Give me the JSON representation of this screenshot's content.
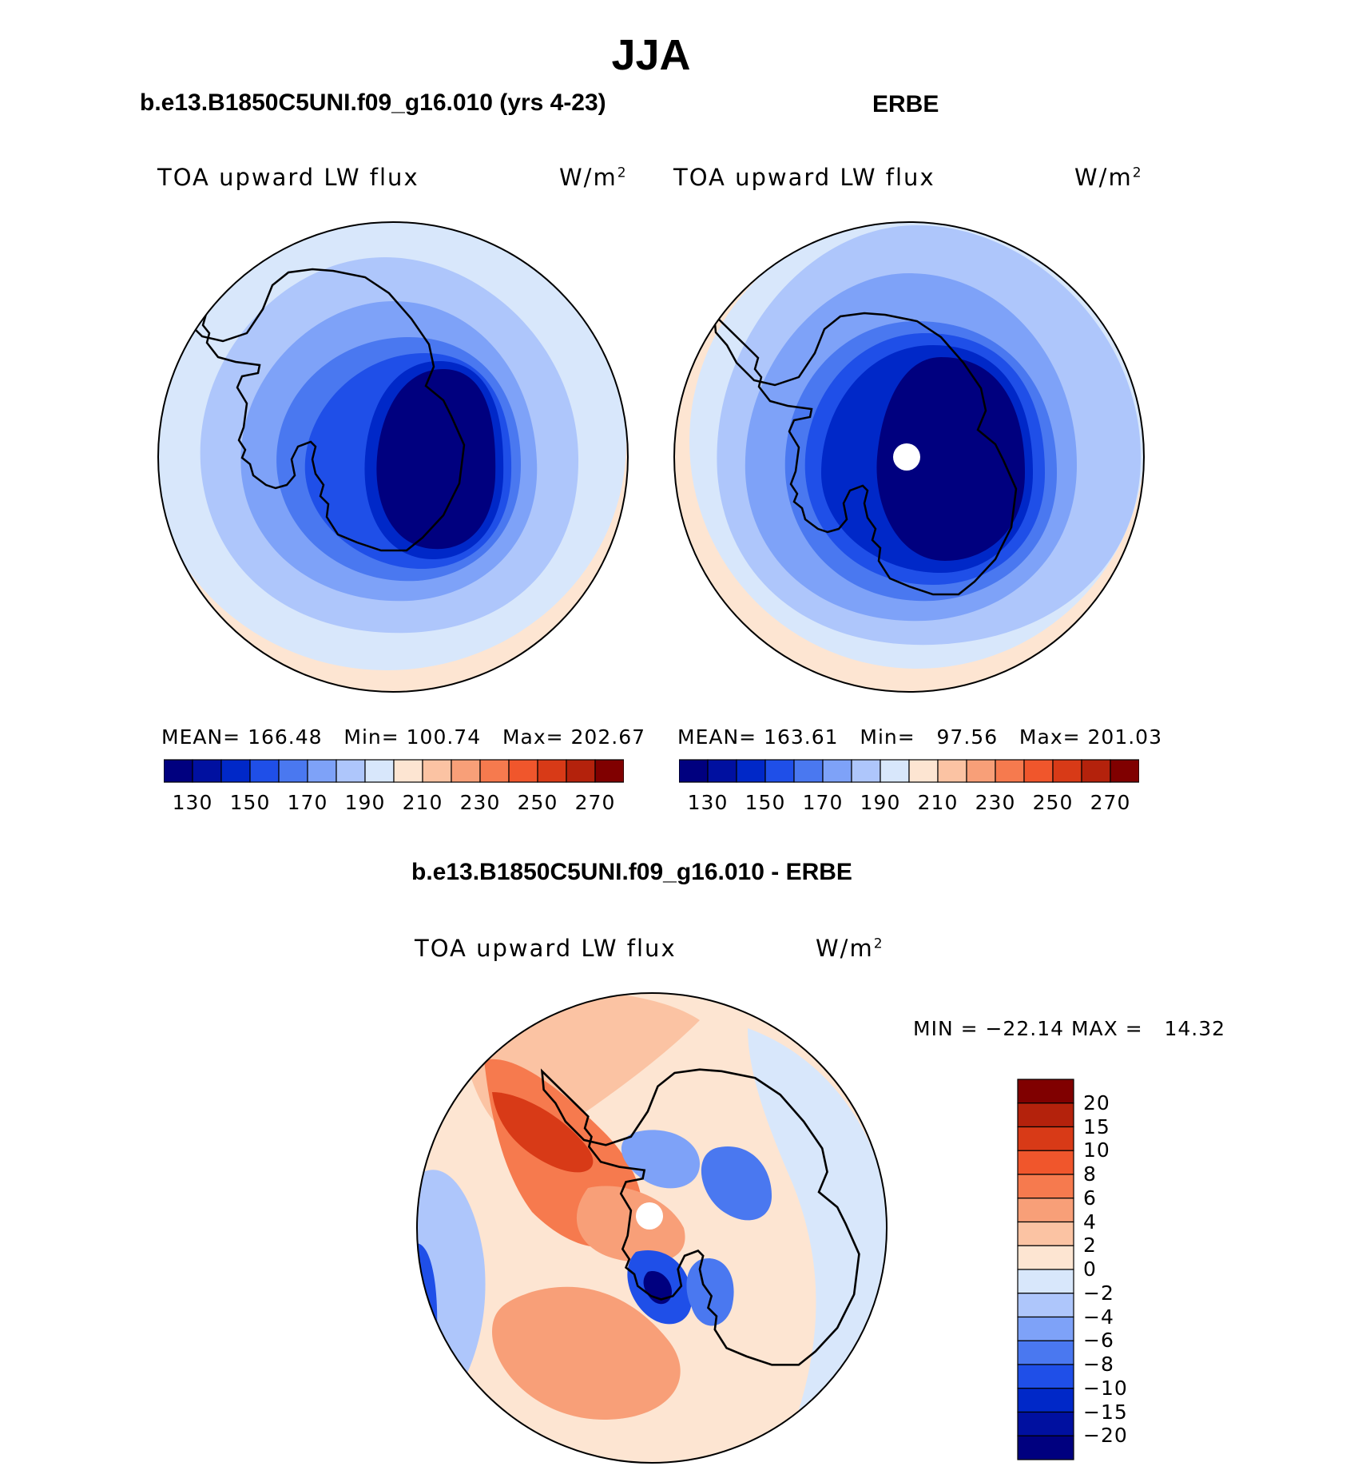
{
  "title": "JJA",
  "panel_left": {
    "case": "b.e13.B1850C5UNI.f09_g16.010 (yrs 4-23)",
    "variable": "TOA upward LW flux",
    "units": "W/m",
    "units_sup": "2",
    "stats": "MEAN= 166.48   Min= 100.74   Max= 202.67",
    "mean": 166.48,
    "min": 100.74,
    "max": 202.67
  },
  "panel_right": {
    "case": "ERBE",
    "variable": "TOA upward LW flux",
    "units": "W/m",
    "units_sup": "2",
    "stats": "MEAN= 163.61   Min=   97.56   Max= 201.03",
    "mean": 163.61,
    "min": 97.56,
    "max": 201.03
  },
  "panel_diff": {
    "case": "b.e13.B1850C5UNI.f09_g16.010 - ERBE",
    "variable": "TOA upward LW flux",
    "units": "W/m",
    "units_sup": "2",
    "stats": "MIN = −22.14 MAX =   14.32",
    "min": -22.14,
    "max": 14.32
  },
  "colorbar_abs": {
    "tick_labels": [
      "130",
      "150",
      "170",
      "190",
      "210",
      "230",
      "250",
      "270"
    ],
    "colors": [
      "#00007f",
      "#0010a0",
      "#0028c8",
      "#1f4fe8",
      "#4a78f0",
      "#7ea2f8",
      "#aec6fb",
      "#d8e7fb",
      "#fde5d2",
      "#fbc3a3",
      "#f89f78",
      "#f67a4e",
      "#f0562c",
      "#d83a17",
      "#b4220c",
      "#800000"
    ]
  },
  "colorbar_diff": {
    "tick_labels": [
      "20",
      "15",
      "10",
      "8",
      "6",
      "4",
      "2",
      "0",
      "−2",
      "−4",
      "−6",
      "−8",
      "−10",
      "−15",
      "−20"
    ],
    "colors": [
      "#800000",
      "#b4220c",
      "#d83a17",
      "#f0562c",
      "#f67a4e",
      "#f89f78",
      "#fbc3a3",
      "#fde5d2",
      "#d8e7fb",
      "#aec6fb",
      "#7ea2f8",
      "#4a78f0",
      "#1f4fe8",
      "#0028c8",
      "#0010a0",
      "#00007f"
    ]
  }
}
